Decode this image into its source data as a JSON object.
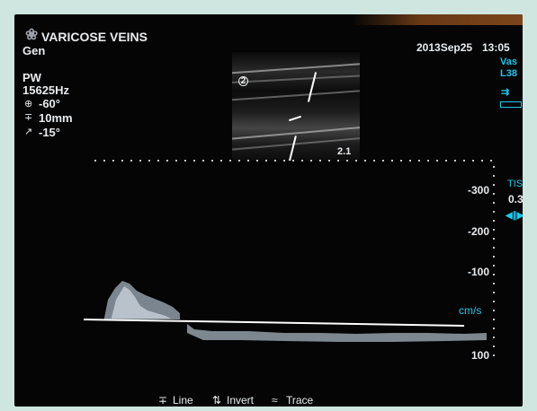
{
  "header": {
    "logo_icon": "probe-icon",
    "exam": "VARICOSE VEINS",
    "preset": "Gen",
    "date": "2013Sep25",
    "time": "13:05"
  },
  "params": {
    "mode": "PW",
    "prf": "15625Hz",
    "angle": "-60°",
    "gate": "10mm",
    "steer": "-15°"
  },
  "probe": {
    "app": "Vas",
    "transducer": "L38"
  },
  "image": {
    "depth_value": "2.1",
    "focus_marker": "2"
  },
  "tis": {
    "label": "TIS",
    "value": "0.3"
  },
  "velocity_scale": {
    "labels": [
      "-300",
      "-200",
      "-100",
      "100"
    ],
    "unit": "cm/s"
  },
  "bottom_menu": {
    "items": [
      {
        "icon": "line-icon",
        "label": "Line"
      },
      {
        "icon": "invert-icon",
        "label": "Invert"
      },
      {
        "icon": "trace-icon",
        "label": "Trace"
      }
    ]
  },
  "colors": {
    "background": "#050505",
    "text": "#e9ecef",
    "accent": "#1ec8f5",
    "frame": "#cfe6e0"
  }
}
